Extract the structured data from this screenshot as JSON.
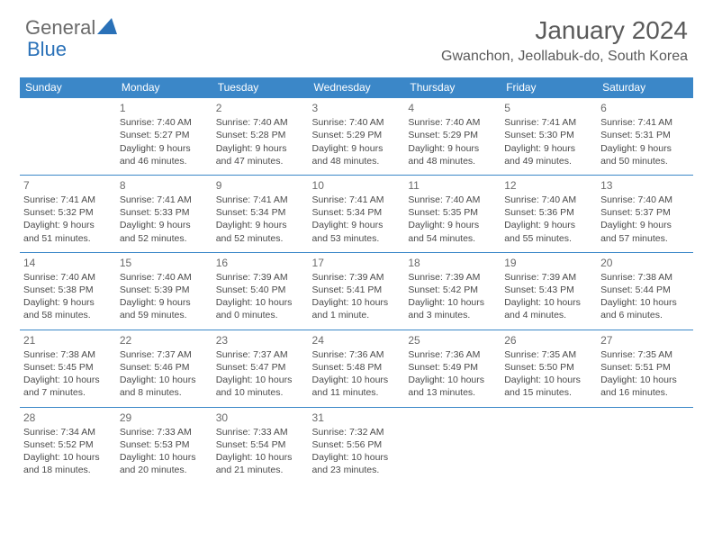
{
  "logo": {
    "general": "General",
    "blue": "Blue"
  },
  "title": "January 2024",
  "location": "Gwanchon, Jeollabuk-do, South Korea",
  "day_headers": [
    "Sunday",
    "Monday",
    "Tuesday",
    "Wednesday",
    "Thursday",
    "Friday",
    "Saturday"
  ],
  "header_bg": "#3b87c8",
  "weeks": [
    [
      null,
      {
        "n": "1",
        "sr": "Sunrise: 7:40 AM",
        "ss": "Sunset: 5:27 PM",
        "d1": "Daylight: 9 hours",
        "d2": "and 46 minutes."
      },
      {
        "n": "2",
        "sr": "Sunrise: 7:40 AM",
        "ss": "Sunset: 5:28 PM",
        "d1": "Daylight: 9 hours",
        "d2": "and 47 minutes."
      },
      {
        "n": "3",
        "sr": "Sunrise: 7:40 AM",
        "ss": "Sunset: 5:29 PM",
        "d1": "Daylight: 9 hours",
        "d2": "and 48 minutes."
      },
      {
        "n": "4",
        "sr": "Sunrise: 7:40 AM",
        "ss": "Sunset: 5:29 PM",
        "d1": "Daylight: 9 hours",
        "d2": "and 48 minutes."
      },
      {
        "n": "5",
        "sr": "Sunrise: 7:41 AM",
        "ss": "Sunset: 5:30 PM",
        "d1": "Daylight: 9 hours",
        "d2": "and 49 minutes."
      },
      {
        "n": "6",
        "sr": "Sunrise: 7:41 AM",
        "ss": "Sunset: 5:31 PM",
        "d1": "Daylight: 9 hours",
        "d2": "and 50 minutes."
      }
    ],
    [
      {
        "n": "7",
        "sr": "Sunrise: 7:41 AM",
        "ss": "Sunset: 5:32 PM",
        "d1": "Daylight: 9 hours",
        "d2": "and 51 minutes."
      },
      {
        "n": "8",
        "sr": "Sunrise: 7:41 AM",
        "ss": "Sunset: 5:33 PM",
        "d1": "Daylight: 9 hours",
        "d2": "and 52 minutes."
      },
      {
        "n": "9",
        "sr": "Sunrise: 7:41 AM",
        "ss": "Sunset: 5:34 PM",
        "d1": "Daylight: 9 hours",
        "d2": "and 52 minutes."
      },
      {
        "n": "10",
        "sr": "Sunrise: 7:41 AM",
        "ss": "Sunset: 5:34 PM",
        "d1": "Daylight: 9 hours",
        "d2": "and 53 minutes."
      },
      {
        "n": "11",
        "sr": "Sunrise: 7:40 AM",
        "ss": "Sunset: 5:35 PM",
        "d1": "Daylight: 9 hours",
        "d2": "and 54 minutes."
      },
      {
        "n": "12",
        "sr": "Sunrise: 7:40 AM",
        "ss": "Sunset: 5:36 PM",
        "d1": "Daylight: 9 hours",
        "d2": "and 55 minutes."
      },
      {
        "n": "13",
        "sr": "Sunrise: 7:40 AM",
        "ss": "Sunset: 5:37 PM",
        "d1": "Daylight: 9 hours",
        "d2": "and 57 minutes."
      }
    ],
    [
      {
        "n": "14",
        "sr": "Sunrise: 7:40 AM",
        "ss": "Sunset: 5:38 PM",
        "d1": "Daylight: 9 hours",
        "d2": "and 58 minutes."
      },
      {
        "n": "15",
        "sr": "Sunrise: 7:40 AM",
        "ss": "Sunset: 5:39 PM",
        "d1": "Daylight: 9 hours",
        "d2": "and 59 minutes."
      },
      {
        "n": "16",
        "sr": "Sunrise: 7:39 AM",
        "ss": "Sunset: 5:40 PM",
        "d1": "Daylight: 10 hours",
        "d2": "and 0 minutes."
      },
      {
        "n": "17",
        "sr": "Sunrise: 7:39 AM",
        "ss": "Sunset: 5:41 PM",
        "d1": "Daylight: 10 hours",
        "d2": "and 1 minute."
      },
      {
        "n": "18",
        "sr": "Sunrise: 7:39 AM",
        "ss": "Sunset: 5:42 PM",
        "d1": "Daylight: 10 hours",
        "d2": "and 3 minutes."
      },
      {
        "n": "19",
        "sr": "Sunrise: 7:39 AM",
        "ss": "Sunset: 5:43 PM",
        "d1": "Daylight: 10 hours",
        "d2": "and 4 minutes."
      },
      {
        "n": "20",
        "sr": "Sunrise: 7:38 AM",
        "ss": "Sunset: 5:44 PM",
        "d1": "Daylight: 10 hours",
        "d2": "and 6 minutes."
      }
    ],
    [
      {
        "n": "21",
        "sr": "Sunrise: 7:38 AM",
        "ss": "Sunset: 5:45 PM",
        "d1": "Daylight: 10 hours",
        "d2": "and 7 minutes."
      },
      {
        "n": "22",
        "sr": "Sunrise: 7:37 AM",
        "ss": "Sunset: 5:46 PM",
        "d1": "Daylight: 10 hours",
        "d2": "and 8 minutes."
      },
      {
        "n": "23",
        "sr": "Sunrise: 7:37 AM",
        "ss": "Sunset: 5:47 PM",
        "d1": "Daylight: 10 hours",
        "d2": "and 10 minutes."
      },
      {
        "n": "24",
        "sr": "Sunrise: 7:36 AM",
        "ss": "Sunset: 5:48 PM",
        "d1": "Daylight: 10 hours",
        "d2": "and 11 minutes."
      },
      {
        "n": "25",
        "sr": "Sunrise: 7:36 AM",
        "ss": "Sunset: 5:49 PM",
        "d1": "Daylight: 10 hours",
        "d2": "and 13 minutes."
      },
      {
        "n": "26",
        "sr": "Sunrise: 7:35 AM",
        "ss": "Sunset: 5:50 PM",
        "d1": "Daylight: 10 hours",
        "d2": "and 15 minutes."
      },
      {
        "n": "27",
        "sr": "Sunrise: 7:35 AM",
        "ss": "Sunset: 5:51 PM",
        "d1": "Daylight: 10 hours",
        "d2": "and 16 minutes."
      }
    ],
    [
      {
        "n": "28",
        "sr": "Sunrise: 7:34 AM",
        "ss": "Sunset: 5:52 PM",
        "d1": "Daylight: 10 hours",
        "d2": "and 18 minutes."
      },
      {
        "n": "29",
        "sr": "Sunrise: 7:33 AM",
        "ss": "Sunset: 5:53 PM",
        "d1": "Daylight: 10 hours",
        "d2": "and 20 minutes."
      },
      {
        "n": "30",
        "sr": "Sunrise: 7:33 AM",
        "ss": "Sunset: 5:54 PM",
        "d1": "Daylight: 10 hours",
        "d2": "and 21 minutes."
      },
      {
        "n": "31",
        "sr": "Sunrise: 7:32 AM",
        "ss": "Sunset: 5:56 PM",
        "d1": "Daylight: 10 hours",
        "d2": "and 23 minutes."
      },
      null,
      null,
      null
    ]
  ]
}
